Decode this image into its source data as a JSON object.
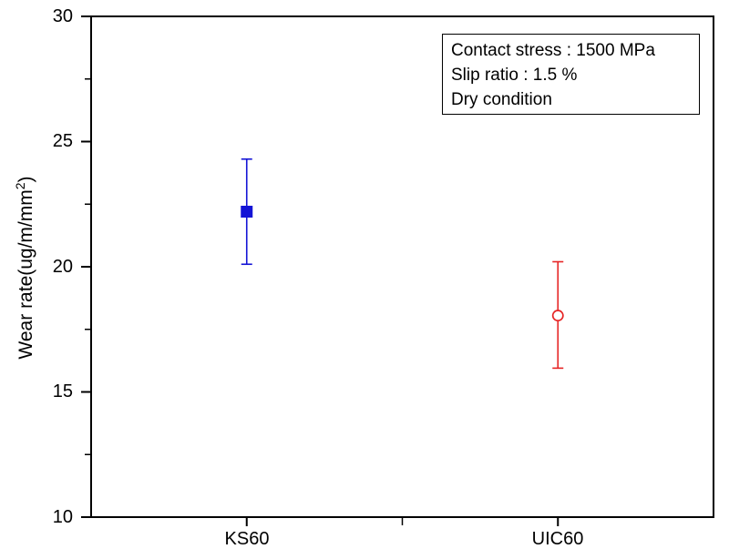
{
  "figure": {
    "background": "#ffffff",
    "axis_color": "#000000",
    "text_color": "#000000"
  },
  "chart_data": {
    "type": "scatter",
    "title": "",
    "categories": [
      "KS60",
      "UIC60"
    ],
    "series": [
      {
        "name": "KS60",
        "marker": "filled-square",
        "color": "#1414d6",
        "value": 22.2,
        "error_plus": 2.1,
        "error_minus": 2.1
      },
      {
        "name": "UIC60",
        "marker": "open-circle",
        "color": "#e62525",
        "value": 18.05,
        "error_plus": 2.15,
        "error_minus": 2.1
      }
    ],
    "xlabel": "",
    "ylabel_main": "Wear rate(ug/m/mm",
    "ylabel_sup": "2",
    "ylabel_close": ")",
    "ylim": [
      10,
      30
    ],
    "yticks": [
      10,
      15,
      20,
      25,
      30
    ],
    "ytick_labels": [
      "10",
      "15",
      "20",
      "25",
      "30"
    ],
    "minor_ytick_step": 2.5,
    "xtick_labels": [
      "KS60",
      "UIC60"
    ],
    "grid": false,
    "legend_position": "top-right",
    "annotation_box": [
      "Contact stress : 1500 MPa",
      "Slip ratio : 1.5 %",
      "Dry condition"
    ]
  }
}
